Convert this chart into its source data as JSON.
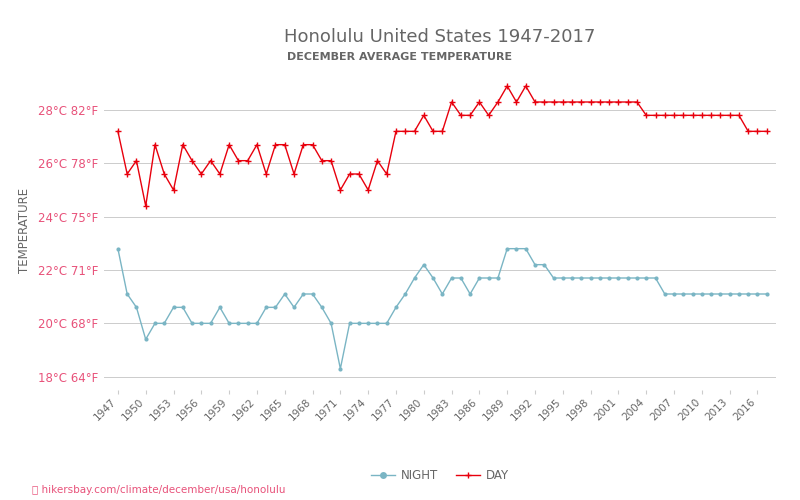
{
  "title": "Honolulu United States 1947-2017",
  "subtitle": "DECEMBER AVERAGE TEMPERATURE",
  "ylabel": "TEMPERATURE",
  "url": "hikersbay.com/climate/december/usa/honolulu",
  "yticks_c": [
    18,
    20,
    22,
    24,
    26,
    28
  ],
  "yticks_f": [
    64,
    68,
    71,
    75,
    78,
    82
  ],
  "years": [
    1947,
    1948,
    1949,
    1950,
    1951,
    1952,
    1953,
    1954,
    1955,
    1956,
    1957,
    1958,
    1959,
    1960,
    1961,
    1962,
    1963,
    1964,
    1965,
    1966,
    1967,
    1968,
    1969,
    1970,
    1971,
    1972,
    1973,
    1974,
    1975,
    1976,
    1977,
    1978,
    1979,
    1980,
    1981,
    1982,
    1983,
    1984,
    1985,
    1986,
    1987,
    1988,
    1989,
    1990,
    1991,
    1992,
    1993,
    1994,
    1995,
    1996,
    1997,
    1998,
    1999,
    2000,
    2001,
    2002,
    2003,
    2004,
    2005,
    2006,
    2007,
    2008,
    2009,
    2010,
    2011,
    2012,
    2013,
    2014,
    2015,
    2016,
    2017
  ],
  "day_temps": [
    27.2,
    25.6,
    26.1,
    24.4,
    26.7,
    25.6,
    25.0,
    26.7,
    26.1,
    25.6,
    26.1,
    25.6,
    26.7,
    26.1,
    26.1,
    26.7,
    25.6,
    26.7,
    26.7,
    25.6,
    26.7,
    26.7,
    26.1,
    26.1,
    25.0,
    25.6,
    25.6,
    25.0,
    26.1,
    25.6,
    27.2,
    27.2,
    27.2,
    27.8,
    27.2,
    27.2,
    28.3,
    27.8,
    27.8,
    28.3,
    27.8,
    28.3,
    28.9,
    28.3,
    28.9,
    28.3,
    28.3,
    28.3,
    28.3,
    28.3,
    28.3,
    28.3,
    28.3,
    28.3,
    28.3,
    28.3,
    28.3,
    27.8,
    27.8,
    27.8,
    27.8,
    27.8,
    27.8,
    27.8,
    27.8,
    27.8,
    27.8,
    27.8,
    27.2,
    27.2,
    27.2
  ],
  "night_temps": [
    22.8,
    21.1,
    20.6,
    19.4,
    20.0,
    20.0,
    20.6,
    20.6,
    20.0,
    20.0,
    20.0,
    20.6,
    20.0,
    20.0,
    20.0,
    20.0,
    20.6,
    20.6,
    21.1,
    20.6,
    21.1,
    21.1,
    20.6,
    20.0,
    18.3,
    20.0,
    20.0,
    20.0,
    20.0,
    20.0,
    20.6,
    21.1,
    21.7,
    22.2,
    21.7,
    21.1,
    21.7,
    21.7,
    21.1,
    21.7,
    21.7,
    21.7,
    22.8,
    22.8,
    22.8,
    22.2,
    22.2,
    21.7,
    21.7,
    21.7,
    21.7,
    21.7,
    21.7,
    21.7,
    21.7,
    21.7,
    21.7,
    21.7,
    21.7,
    21.1,
    21.1,
    21.1,
    21.1,
    21.1,
    21.1,
    21.1,
    21.1,
    21.1,
    21.1,
    21.1,
    21.1
  ],
  "day_color": "#e8000d",
  "night_color": "#7ab5c4",
  "title_color": "#666666",
  "subtitle_color": "#666666",
  "axis_label_color": "#666666",
  "tick_label_color": "#e8527a",
  "grid_color": "#cccccc",
  "url_color": "#e8527a",
  "bg_color": "#ffffff"
}
